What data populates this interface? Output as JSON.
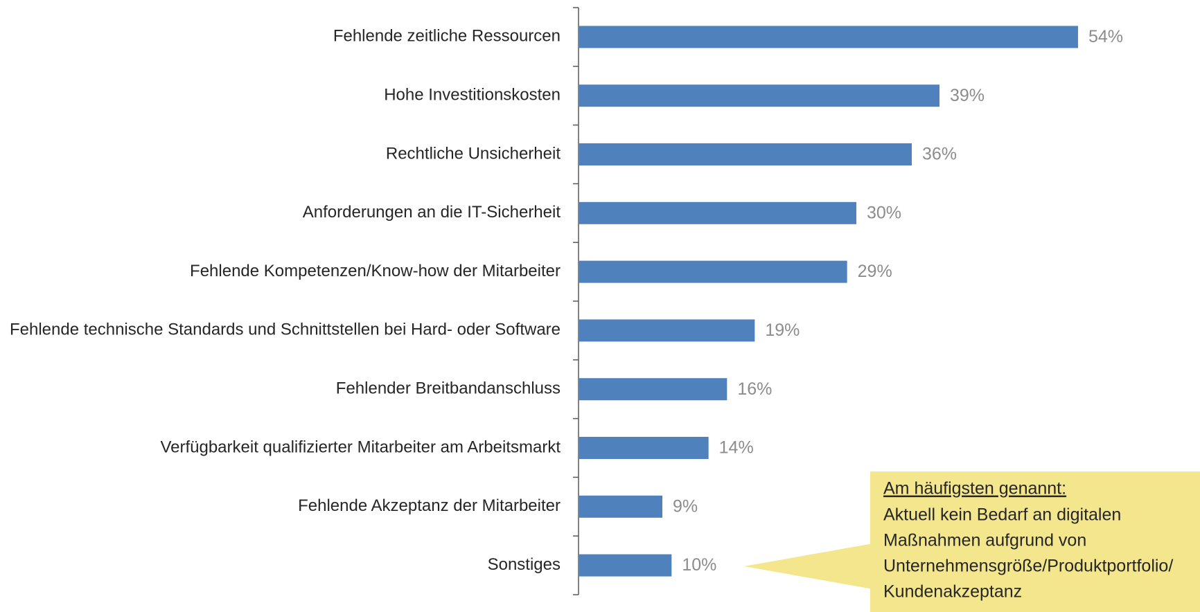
{
  "chart_data": {
    "type": "barh",
    "categories": [
      "Fehlende zeitliche Ressourcen",
      "Hohe Investitionskosten",
      "Rechtliche Unsicherheit",
      "Anforderungen an die IT-Sicherheit",
      "Fehlende Kompetenzen/Know-how der Mitarbeiter",
      "Fehlende technische Standards und Schnittstellen bei Hard- oder Software",
      "Fehlender Breitbandanschluss",
      "Verfügbarkeit qualifizierter Mitarbeiter am Arbeitsmarkt",
      "Fehlende Akzeptanz der Mitarbeiter",
      "Sonstiges"
    ],
    "values": [
      54,
      39,
      36,
      30,
      29,
      19,
      16,
      14,
      9,
      10
    ],
    "value_labels": [
      "54%",
      "39%",
      "36%",
      "30%",
      "29%",
      "19%",
      "16%",
      "14%",
      "9%",
      "10%"
    ],
    "color": "#4f81bd",
    "callout": {
      "heading": "Am häufigsten genannt:",
      "lines": [
        "Aktuell kein Bedarf an digitalen",
        "Maßnahmen aufgrund von",
        "Unternehmensgröße/Produktportfolio/",
        "Kundenakzeptanz"
      ]
    }
  }
}
